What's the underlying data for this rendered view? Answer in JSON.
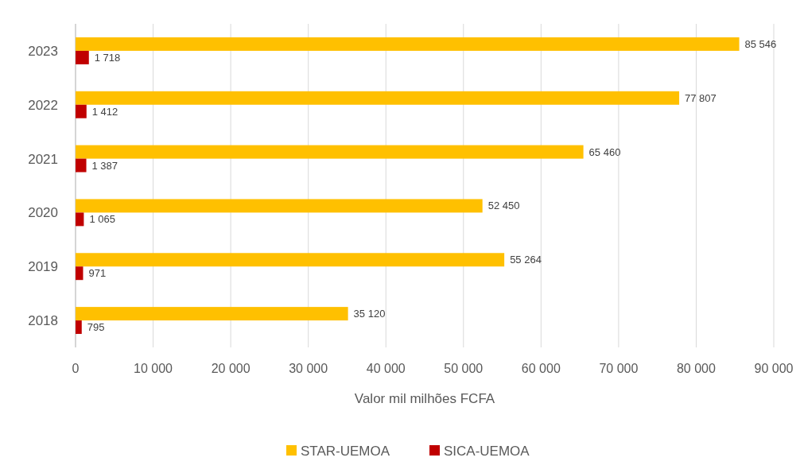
{
  "chart_data": {
    "type": "bar",
    "orientation": "horizontal",
    "xlabel": "Valor mil milhões FCFA",
    "categories": [
      "2023",
      "2022",
      "2021",
      "2020",
      "2019",
      "2018"
    ],
    "series": [
      {
        "name": "STAR-UEMOA",
        "color": "#ffc000",
        "values": [
          85546,
          77807,
          65460,
          52450,
          55264,
          35120
        ],
        "value_labels": [
          "85 546",
          "77 807",
          "65 460",
          "52 450",
          "55 264",
          "35 120"
        ]
      },
      {
        "name": "SICA-UEMOA",
        "color": "#c00000",
        "values": [
          1718,
          1412,
          1387,
          1065,
          971,
          795
        ],
        "value_labels": [
          "1 718",
          "1 412",
          "1 387",
          "1 065",
          "971",
          "795"
        ]
      }
    ],
    "xlim": [
      0,
      90000
    ],
    "xticks": [
      0,
      {
        "value": 10000,
        "label": "10 000"
      },
      {
        "value": 20000,
        "label": "20 000"
      },
      {
        "value": 30000,
        "label": "30 000"
      },
      {
        "value": 40000,
        "label": "40 000"
      },
      {
        "value": 50000,
        "label": "50 000"
      },
      {
        "value": 60000,
        "label": "60 000"
      },
      {
        "value": 70000,
        "label": "70 000"
      },
      {
        "value": 80000,
        "label": "80 000"
      },
      {
        "value": 90000,
        "label": "90 000"
      }
    ],
    "grid": "x",
    "legend": "bottom"
  }
}
